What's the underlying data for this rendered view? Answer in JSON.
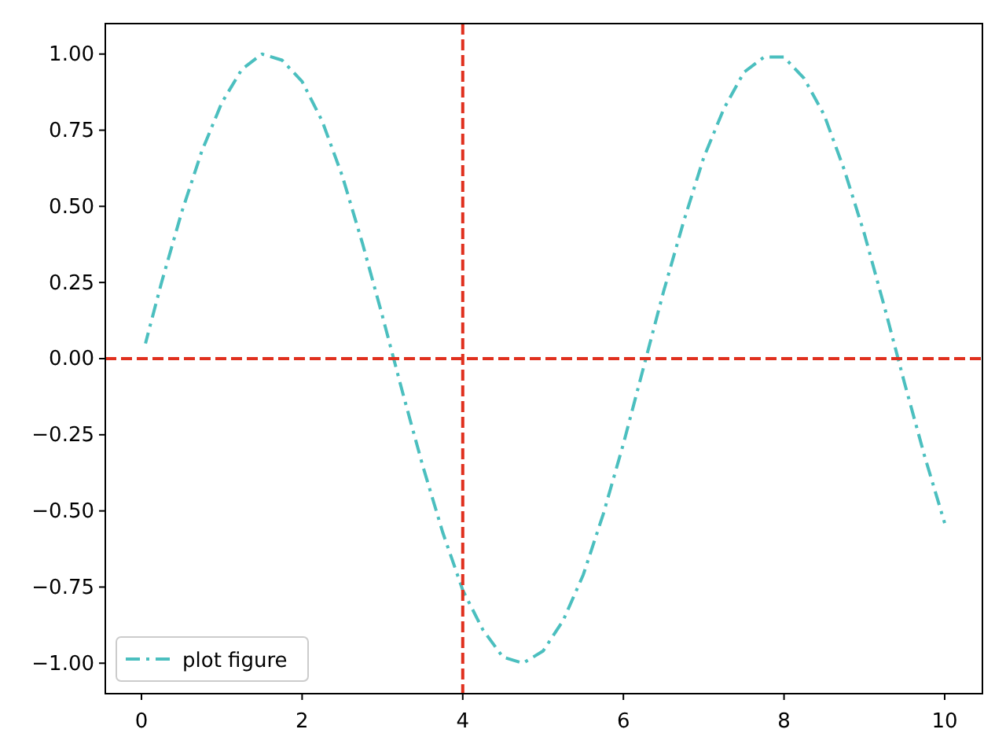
{
  "chart_data": {
    "type": "line",
    "x": [
      0.05,
      0.25,
      0.5,
      0.75,
      1,
      1.25,
      1.5,
      1.75,
      2,
      2.25,
      2.5,
      2.75,
      3,
      3.25,
      3.5,
      3.75,
      4,
      4.25,
      4.5,
      4.75,
      5,
      5.25,
      5.5,
      5.75,
      6,
      6.25,
      6.5,
      6.75,
      7,
      7.25,
      7.5,
      7.75,
      8,
      8.25,
      8.5,
      8.75,
      9,
      9.25,
      9.5,
      9.75,
      10
    ],
    "series": [
      {
        "name": "plot figure",
        "color": "#4bbfbf",
        "values": [
          0.05,
          0.25,
          0.48,
          0.68,
          0.84,
          0.95,
          1.0,
          0.98,
          0.91,
          0.78,
          0.6,
          0.38,
          0.14,
          -0.11,
          -0.35,
          -0.57,
          -0.76,
          -0.89,
          -0.98,
          -1.0,
          -0.96,
          -0.86,
          -0.71,
          -0.51,
          -0.28,
          -0.03,
          0.22,
          0.45,
          0.66,
          0.82,
          0.94,
          0.99,
          0.99,
          0.92,
          0.8,
          0.62,
          0.41,
          0.17,
          -0.08,
          -0.32,
          -0.54
        ]
      }
    ],
    "line_style": "dashdot",
    "marker": "none",
    "legend": "bottom left",
    "grid": false,
    "xlim": [
      -0.45,
      10.47
    ],
    "xticks": [
      0,
      2,
      4,
      6,
      8,
      10
    ],
    "ylim": [
      -1.1,
      1.1
    ],
    "yticks": [
      {
        "value": -1,
        "label": "−1.00"
      },
      {
        "value": -0.75,
        "label": "−0.75"
      },
      {
        "value": -0.5,
        "label": "−0.50"
      },
      {
        "value": -0.25,
        "label": "−0.25"
      },
      {
        "value": 0,
        "label": "0.00"
      },
      {
        "value": 0.25,
        "label": "0.25"
      },
      {
        "value": 0.5,
        "label": "0.50"
      },
      {
        "value": 0.75,
        "label": "0.75"
      },
      {
        "value": 1,
        "label": "1.00"
      }
    ],
    "ref_lines": [
      {
        "axis": "x",
        "value": 4,
        "color": "#e0301e",
        "line_style": "dashed"
      },
      {
        "axis": "y",
        "value": 0,
        "color": "#e0301e",
        "line_style": "dashed"
      }
    ]
  }
}
